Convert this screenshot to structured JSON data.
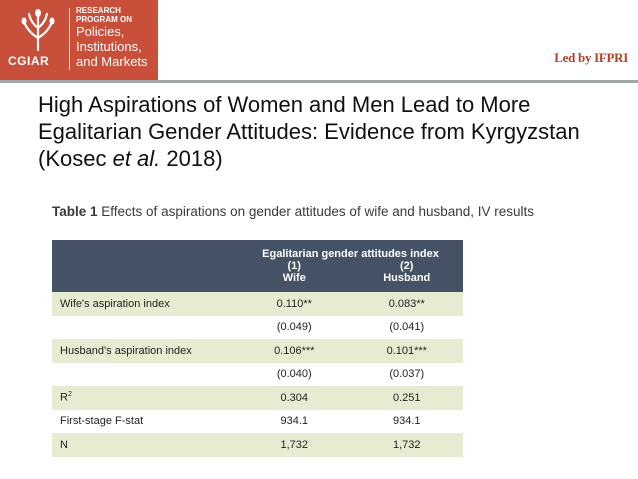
{
  "header": {
    "org": "CGIAR",
    "program_line1": "RESEARCH",
    "program_line2": "PROGRAM ON",
    "program_line3": "Policies,",
    "program_line4": "Institutions,",
    "program_line5": "and Markets",
    "led_by": "Led by IFPRI",
    "brand_color": "#c8503a"
  },
  "slide": {
    "title_main": "High Aspirations of Women and Men Lead to More Egalitarian Gender Attitudes: Evidence from Kyrgyzstan (Kosec ",
    "title_italic": "et al.",
    "title_end": " 2018)"
  },
  "table": {
    "caption_bold": "Table 1",
    "caption_text": " Effects of aspirations on gender attitudes of wife and husband, IV results",
    "header_title": "Egalitarian gender attitudes index",
    "col1_num": "(1)",
    "col1_name": "Wife",
    "col2_num": "(2)",
    "col2_name": "Husband",
    "rows": [
      {
        "label": "Wife's aspiration index",
        "c1": "0.110**",
        "c2": "0.083**"
      },
      {
        "label": "",
        "c1": "(0.049)",
        "c2": "(0.041)"
      },
      {
        "label": "Husband's aspiration index",
        "c1": "0.106***",
        "c2": "0.101***"
      },
      {
        "label": "",
        "c1": "(0.040)",
        "c2": "(0.037)"
      },
      {
        "label": "R",
        "sup": "2",
        "c1": "0.304",
        "c2": "0.251"
      },
      {
        "label": "First-stage F-stat",
        "c1": "934.1",
        "c2": "934.1"
      },
      {
        "label": "N",
        "c1": "1,732",
        "c2": "1,732"
      }
    ],
    "header_color": "#455165",
    "stripe_color": "#e6ecd1"
  }
}
